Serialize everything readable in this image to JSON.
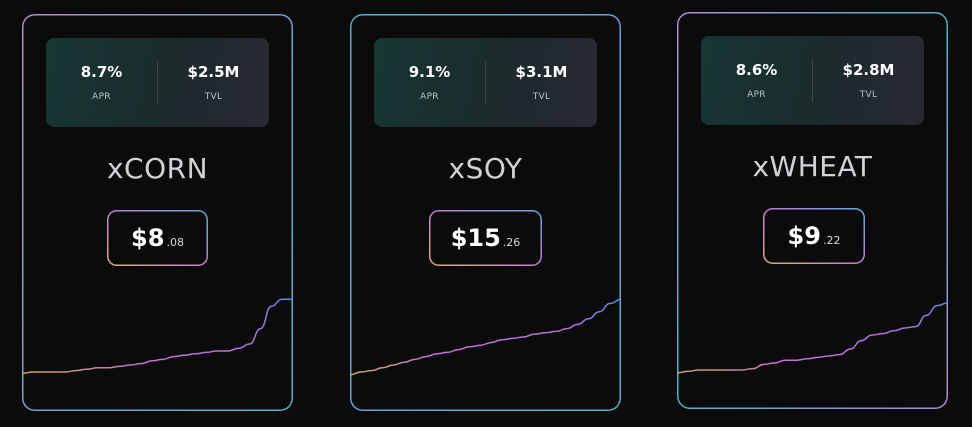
{
  "colors": {
    "background": "#0b0b0c",
    "border_gradient": [
      "#b18bd6",
      "#4fb3c9"
    ],
    "price_border_gradient": [
      "#d6b36a",
      "#c77ad8",
      "#5fa8e0"
    ],
    "sparkline_gradient": [
      "#c9a84e",
      "#c86fd6",
      "#4f8fe0"
    ]
  },
  "cards": [
    {
      "apr_value": "8.7%",
      "apr_label": "APR",
      "tvl_value": "$2.5M",
      "tvl_label": "TVL",
      "name": "xCORN",
      "price_int": "$8",
      "price_dec": ".08",
      "sparkline": [
        0.04,
        0.05,
        0.05,
        0.05,
        0.05,
        0.06,
        0.07,
        0.08,
        0.08,
        0.09,
        0.1,
        0.11,
        0.13,
        0.14,
        0.16,
        0.17,
        0.18,
        0.19,
        0.2,
        0.2,
        0.22,
        0.25,
        0.36,
        0.52,
        0.57,
        0.57
      ]
    },
    {
      "apr_value": "9.1%",
      "apr_label": "APR",
      "tvl_value": "$3.1M",
      "tvl_label": "TVL",
      "name": "xSOY",
      "price_int": "$15",
      "price_dec": ".26",
      "sparkline": [
        0.03,
        0.05,
        0.06,
        0.08,
        0.1,
        0.12,
        0.14,
        0.16,
        0.18,
        0.19,
        0.21,
        0.23,
        0.24,
        0.26,
        0.28,
        0.29,
        0.3,
        0.32,
        0.33,
        0.34,
        0.36,
        0.39,
        0.43,
        0.48,
        0.54,
        0.57
      ]
    },
    {
      "apr_value": "8.6%",
      "apr_label": "APR",
      "tvl_value": "$2.8M",
      "tvl_label": "TVL",
      "name": "xWHEAT",
      "price_int": "$9",
      "price_dec": ".22",
      "sparkline": [
        0.03,
        0.04,
        0.05,
        0.05,
        0.05,
        0.05,
        0.05,
        0.06,
        0.09,
        0.1,
        0.12,
        0.12,
        0.13,
        0.14,
        0.15,
        0.16,
        0.2,
        0.26,
        0.3,
        0.31,
        0.33,
        0.35,
        0.36,
        0.44,
        0.51,
        0.53
      ]
    }
  ]
}
